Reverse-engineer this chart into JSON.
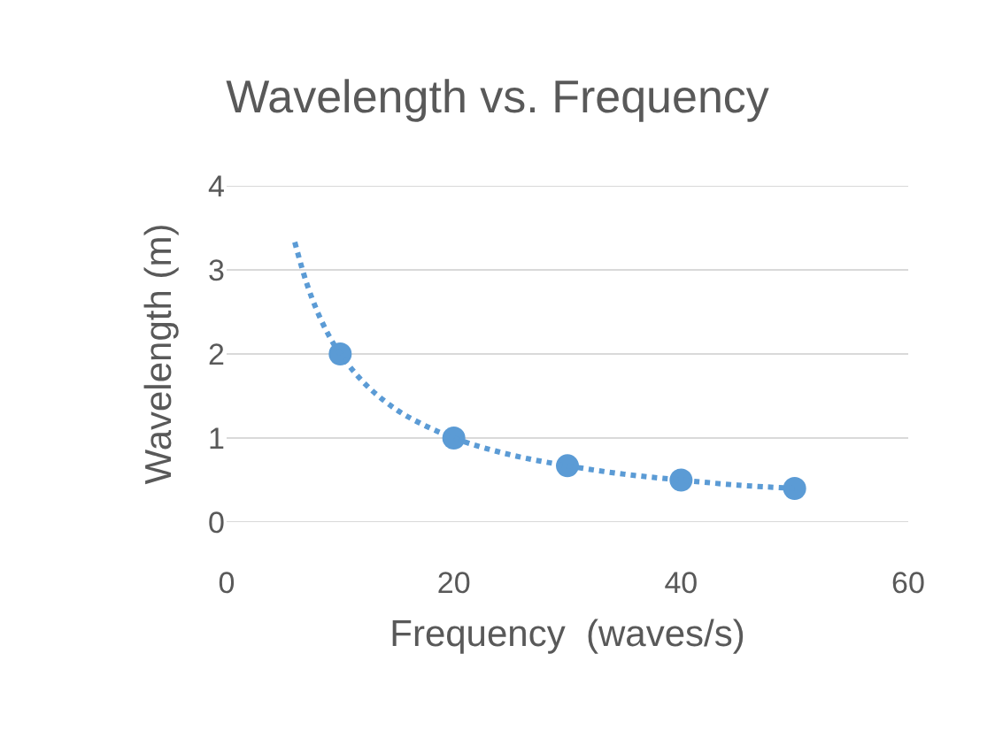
{
  "chart_data": {
    "type": "scatter",
    "title": "Wavelength vs. Frequency",
    "xlabel": "Frequency  (waves/s)",
    "ylabel": "Wavelength (m)",
    "xlim": [
      0,
      60
    ],
    "xticks": [
      0,
      20,
      40,
      60
    ],
    "ylim": [
      0,
      4
    ],
    "yticks": [
      0,
      1,
      2,
      3,
      4
    ],
    "grid": "y",
    "legend": false,
    "series": [
      {
        "marker": "circle",
        "color": "#5b9bd5",
        "x": [
          10,
          20,
          30,
          40,
          50
        ],
        "values": [
          2,
          1,
          0.67,
          0.5,
          0.4
        ]
      },
      {
        "type": "line",
        "marker": "none",
        "color": "#5b9bd5",
        "line_style": "dotted",
        "x": [
          6,
          7,
          8,
          9,
          10,
          12,
          14,
          16,
          20,
          25,
          30,
          35,
          40,
          45,
          50
        ],
        "values": [
          3.33,
          2.86,
          2.5,
          2.22,
          2,
          1.67,
          1.43,
          1.25,
          1,
          0.8,
          0.67,
          0.57,
          0.5,
          0.44,
          0.4
        ]
      }
    ]
  }
}
